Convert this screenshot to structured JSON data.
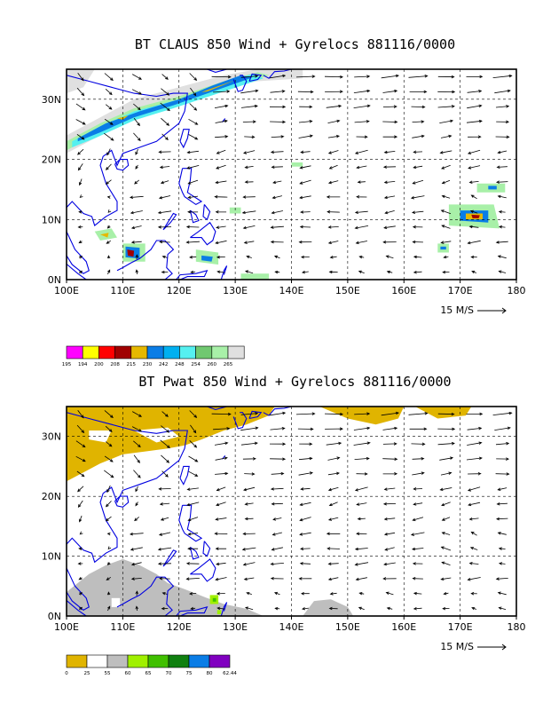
{
  "panels": [
    {
      "title": "BT CLAUS 850 Wind + Gyrelocs 881116/0000",
      "kind": "claus",
      "x_ticks": [
        "100E",
        "110E",
        "120E",
        "130E",
        "140E",
        "150E",
        "160E",
        "170E",
        "180"
      ],
      "y_ticks": [
        "0N",
        "10N",
        "20N",
        "30N"
      ],
      "ref_vector_label": "15 M/S",
      "legend": {
        "labels": [
          "195",
          "194",
          "200",
          "208",
          "215",
          "230",
          "242",
          "248",
          "254",
          "260",
          "265"
        ],
        "colors": [
          "#ff00ff",
          "#ffff00",
          "#ff0000",
          "#a00000",
          "#e6b800",
          "#0a7de6",
          "#00b0f0",
          "#55f0f0",
          "#70c870",
          "#a8f0a8",
          "#e0e0e0"
        ]
      }
    },
    {
      "title": "BT Pwat 850 Wind + Gyrelocs 881116/0000",
      "kind": "pwat",
      "x_ticks": [
        "100E",
        "110E",
        "120E",
        "130E",
        "140E",
        "150E",
        "160E",
        "170E",
        "180"
      ],
      "y_ticks": [
        "0N",
        "10N",
        "20N",
        "30N"
      ],
      "ref_vector_label": "15 M/S",
      "legend": {
        "labels": [
          "0",
          "25",
          "55",
          "60",
          "65",
          "70",
          "75",
          "80",
          "62.44"
        ],
        "colors": [
          "#e0b400",
          "#ffffff",
          "#bebebe",
          "#a0f000",
          "#40c000",
          "#108010",
          "#0a7de6",
          "#8000c0"
        ]
      }
    }
  ],
  "colors": {
    "coast": "#0000e0",
    "frame": "#000000",
    "arrow": "#000000"
  }
}
